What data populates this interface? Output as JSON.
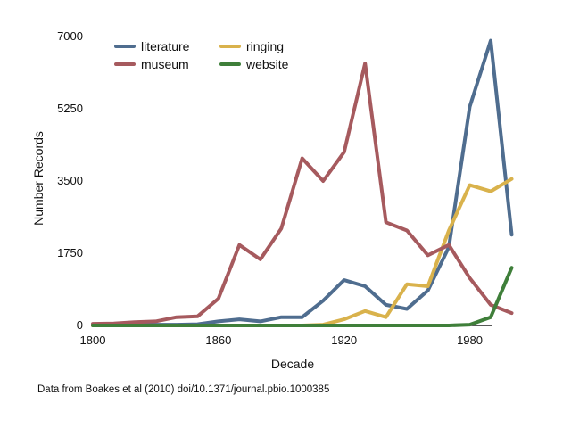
{
  "chart_data": {
    "type": "line",
    "title": "",
    "xlabel": "Decade",
    "ylabel": "Number Records",
    "xlim": [
      1800,
      1990
    ],
    "ylim": [
      0,
      7000
    ],
    "x_ticks": [
      1800,
      1860,
      1920,
      1980
    ],
    "y_ticks": [
      0,
      1750,
      3500,
      5250,
      7000
    ],
    "grid": false,
    "legend_position": "top-left",
    "x": [
      1800,
      1810,
      1820,
      1830,
      1840,
      1850,
      1860,
      1870,
      1880,
      1890,
      1900,
      1910,
      1920,
      1930,
      1940,
      1950,
      1960,
      1970,
      1980,
      1990,
      2000
    ],
    "series": [
      {
        "name": "literature",
        "color": "#4f6d8f",
        "values": [
          20,
          30,
          30,
          20,
          20,
          30,
          100,
          150,
          100,
          200,
          200,
          600,
          1100,
          950,
          500,
          400,
          850,
          1900,
          5300,
          6900,
          2200
        ]
      },
      {
        "name": "ringing",
        "color": "#d9b24c",
        "values": [
          0,
          0,
          0,
          0,
          0,
          0,
          0,
          0,
          0,
          0,
          0,
          20,
          150,
          350,
          200,
          1000,
          950,
          2300,
          3400,
          3250,
          3550
        ]
      },
      {
        "name": "museum",
        "color": "#a65a5e",
        "values": [
          40,
          50,
          80,
          100,
          200,
          220,
          650,
          1950,
          1600,
          2350,
          4050,
          3500,
          4200,
          6350,
          2500,
          2300,
          1700,
          1950,
          1150,
          500,
          300
        ]
      },
      {
        "name": "website",
        "color": "#3f7f3a",
        "values": [
          0,
          0,
          0,
          0,
          0,
          0,
          0,
          0,
          0,
          0,
          0,
          0,
          0,
          0,
          0,
          0,
          0,
          0,
          20,
          200,
          1400
        ]
      }
    ]
  },
  "source_note": "Data from Boakes et al (2010) doi/10.1371/journal.pbio.1000385"
}
